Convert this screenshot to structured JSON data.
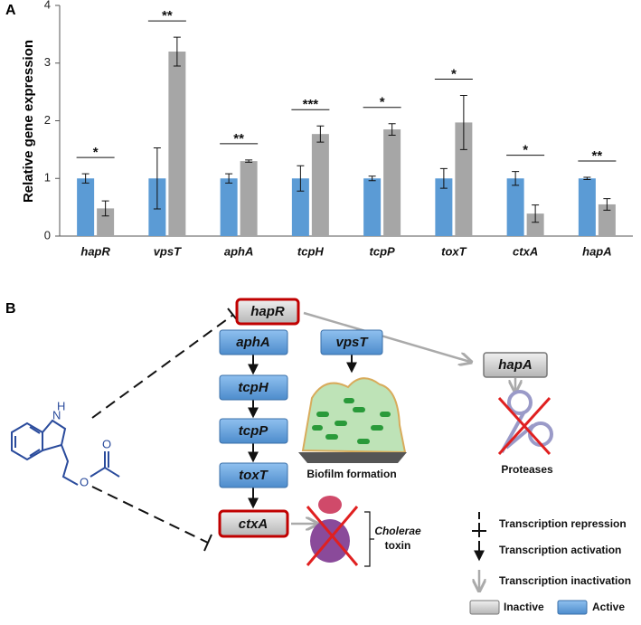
{
  "chart_data": {
    "type": "bar",
    "panel": "A",
    "ylabel": "Relative gene expression",
    "categories": [
      "hapR",
      "vpsT",
      "aphA",
      "tcpH",
      "tcpP",
      "toxT",
      "ctxA",
      "hapA"
    ],
    "series": [
      {
        "color": "#5b9bd5",
        "values": [
          1.0,
          1.0,
          1.0,
          1.0,
          1.0,
          1.0,
          1.0,
          1.0
        ],
        "errors": [
          0.08,
          0.53,
          0.08,
          0.22,
          0.04,
          0.17,
          0.12,
          0.02
        ]
      },
      {
        "color": "#a6a6a6",
        "values": [
          0.48,
          3.2,
          1.3,
          1.77,
          1.85,
          1.97,
          0.39,
          0.55
        ],
        "errors": [
          0.13,
          0.25,
          0.02,
          0.14,
          0.1,
          0.47,
          0.15,
          0.1
        ]
      }
    ],
    "significance": [
      "*",
      "**",
      "**",
      "***",
      "*",
      "*",
      "*",
      "**"
    ],
    "ylim": [
      0,
      4
    ],
    "yticks": [
      0,
      1,
      2,
      3,
      4
    ]
  },
  "diagram": {
    "panel": "B",
    "nodes": {
      "hapR": "hapR",
      "hapA": "hapA",
      "aphA": "aphA",
      "tcpH": "tcpH",
      "tcpP": "tcpP",
      "toxT": "toxT",
      "ctxA": "ctxA",
      "vpsT": "vpsT"
    },
    "labels": {
      "biofilm": "Biofilm formation",
      "proteases": "Proteases",
      "toxin_1": "Cholerae",
      "toxin_2": "toxin"
    },
    "atoms": [
      "N",
      "H",
      "O",
      "O"
    ],
    "legend": {
      "repression": "Transcription repression",
      "activation": "Transcription activation",
      "inactivation": "Transcription inactivation",
      "inactive": "Inactive",
      "active": "Active"
    }
  }
}
